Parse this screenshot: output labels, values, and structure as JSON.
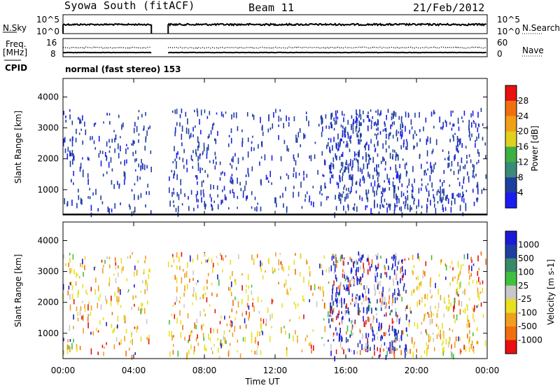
{
  "header": {
    "station": "Syowa South (fitACF)",
    "beam": "Beam 11",
    "date": "21/Feb/2012"
  },
  "strip_labels": {
    "nsky": "N.Sky",
    "nsearch": "N.Search",
    "freq": "Freq.",
    "mhz": "[MHz]",
    "nave": "Nave",
    "cpid": "CPID",
    "noise_left_top": "10^5",
    "noise_left_bottom": "10^0",
    "noise_right_top": "10^5",
    "noise_right_bottom": "10^0",
    "freq_left_top": "16",
    "freq_left_bottom": "8",
    "nave_right_top": "60",
    "nave_right_bottom": "0"
  },
  "cpid_text": "normal (fast stereo) 153",
  "xaxis": {
    "ticks": [
      "00:00",
      "04:00",
      "08:00",
      "12:00",
      "16:00",
      "20:00",
      "00:00"
    ],
    "label": "Time UT"
  },
  "chart_data": [
    {
      "type": "heatmap",
      "title": "",
      "xlabel": "Time UT",
      "ylabel": "Slant Range [km]",
      "xlim": [
        0,
        24
      ],
      "ylim": [
        180,
        4600
      ],
      "yticks": [
        1000,
        2000,
        3000,
        4000
      ],
      "colorbar": {
        "label": "Power [dB]",
        "ticks": [
          "4",
          "8",
          "12",
          "16",
          "20",
          "24",
          "28"
        ],
        "colors": [
          "#1c1cf0",
          "#1f3f9e",
          "#3a8a7a",
          "#3cb043",
          "#e0d020",
          "#f0a018",
          "#f07010",
          "#e81010"
        ]
      },
      "data_gaps_hours": [
        [
          5.0,
          5.95
        ]
      ],
      "dense_period_hours": [
        15.0,
        19.5
      ]
    },
    {
      "type": "heatmap",
      "title": "",
      "xlabel": "Time UT",
      "ylabel": "Slant Range [km]",
      "xlim": [
        0,
        24
      ],
      "ylim": [
        180,
        4600
      ],
      "yticks": [
        1000,
        2000,
        3000,
        4000
      ],
      "colorbar": {
        "label": "Velocity [m s-1]",
        "ticks": [
          "1000",
          "500",
          "100",
          "25",
          "-25",
          "-100",
          "-500",
          "-1000"
        ],
        "colors": [
          "#1a1ad8",
          "#1f3fa0",
          "#3a8a6a",
          "#40c040",
          "#c8c8c8",
          "#e8e020",
          "#f0a020",
          "#f07010",
          "#e81010"
        ]
      },
      "data_gaps_hours": [
        [
          5.0,
          5.95
        ]
      ]
    }
  ]
}
